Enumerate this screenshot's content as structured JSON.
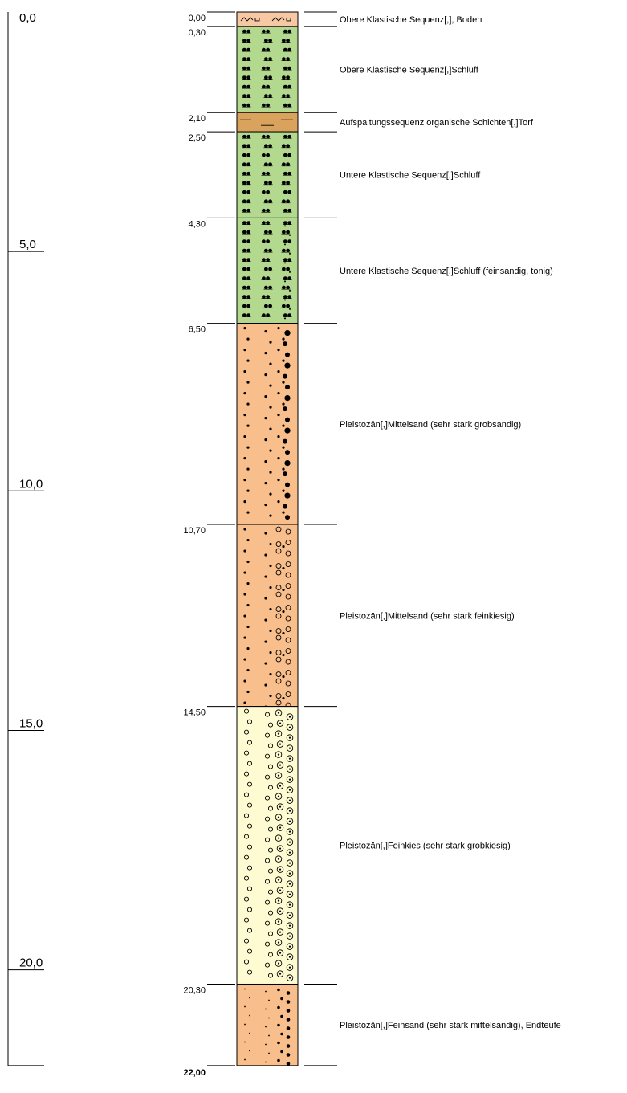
{
  "scale": {
    "unit_per_tick": 5,
    "ticks": [
      "0,0",
      "5,0",
      "10,0",
      "15,0",
      "20,0"
    ]
  },
  "profile": {
    "total_depth": 22.0,
    "final_depth_label": "22,00",
    "layers": [
      {
        "top": 0.0,
        "bottom": 0.3,
        "top_label": "0,00",
        "pattern": "boden",
        "color": "#f6c9a4",
        "description": "Obere Klastische Sequenz[,], Boden"
      },
      {
        "top": 0.3,
        "bottom": 2.1,
        "top_label": "0,30",
        "pattern": "schluff",
        "color": "#b3d98f",
        "description": "Obere Klastische Sequenz[,]Schluff"
      },
      {
        "top": 2.1,
        "bottom": 2.5,
        "top_label": "2,10",
        "pattern": "torf",
        "color": "#d9a35e",
        "description": "Aufspaltungssequenz organische Schichten[,]Torf"
      },
      {
        "top": 2.5,
        "bottom": 4.3,
        "top_label": "2,50",
        "pattern": "schluff",
        "color": "#b3d98f",
        "description": "Untere Klastische Sequenz[,]Schluff"
      },
      {
        "top": 4.3,
        "bottom": 6.5,
        "top_label": "4,30",
        "pattern": "schluff-fs",
        "color": "#b3d98f",
        "description": "Untere Klastische Sequenz[,]Schluff (feinsandig, tonig)"
      },
      {
        "top": 6.5,
        "bottom": 10.7,
        "top_label": "6,50",
        "pattern": "ms-gs",
        "color": "#f8bf8c",
        "description": "Pleistozän[,]Mittelsand (sehr stark grobsandig)"
      },
      {
        "top": 10.7,
        "bottom": 14.5,
        "top_label": "10,70",
        "pattern": "ms-fg",
        "color": "#f8bf8c",
        "description": "Pleistozän[,]Mittelsand (sehr stark feinkiesig)"
      },
      {
        "top": 14.5,
        "bottom": 20.3,
        "top_label": "14,50",
        "pattern": "fg-gg",
        "color": "#fefbd2",
        "description": "Pleistozän[,]Feinkies (sehr stark grobkiesig)"
      },
      {
        "top": 20.3,
        "bottom": 22.0,
        "top_label": "20,30",
        "pattern": "fs-ms",
        "color": "#f8bf8c",
        "description": "Pleistozän[,]Feinsand (sehr stark mittelsandig), Endteufe"
      }
    ]
  }
}
